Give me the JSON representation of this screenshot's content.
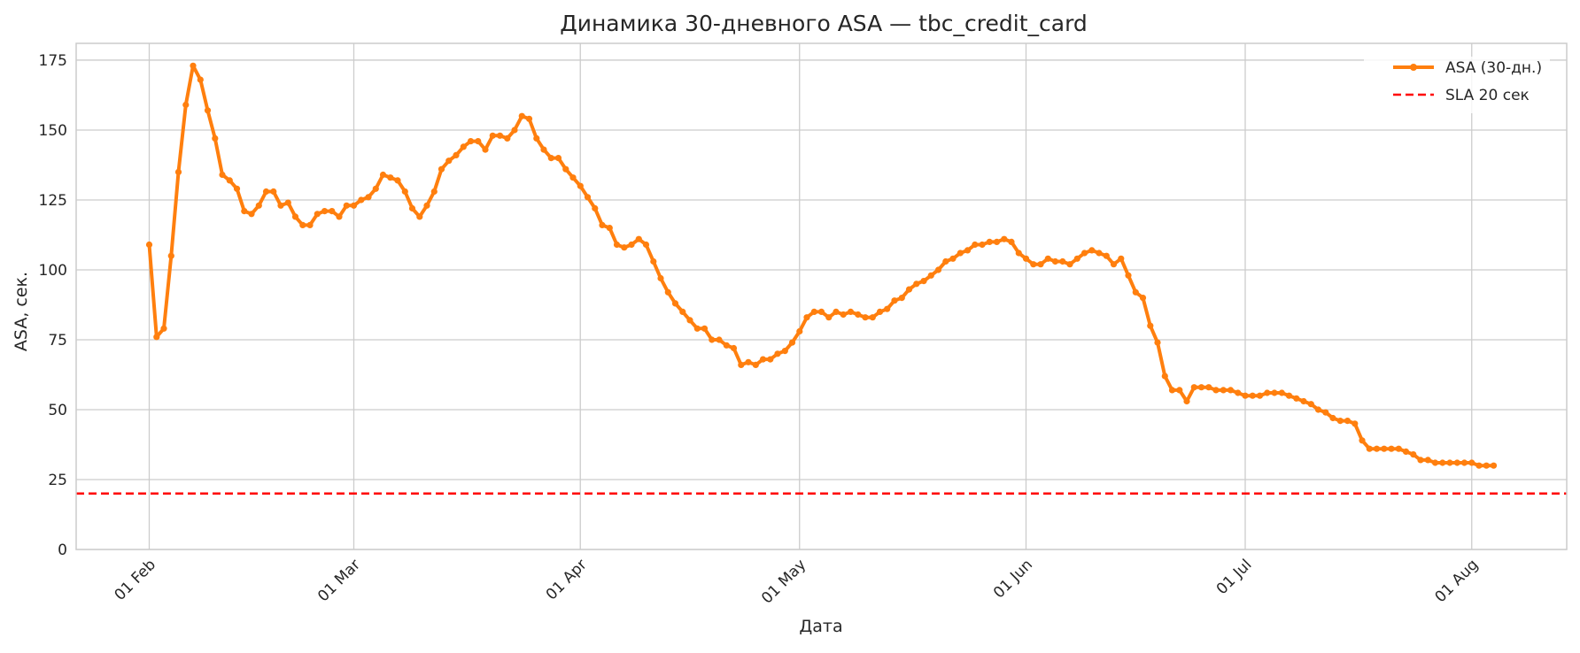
{
  "chart_data": {
    "type": "line",
    "title": "Динамика 30-дневного ASA — tbc_credit_card",
    "xlabel": "Дата",
    "ylabel": "ASA, сек.",
    "x_axis_type": "date",
    "xlim": [
      "2025-01-22",
      "2025-08-14"
    ],
    "ylim": [
      0,
      181
    ],
    "x_ticks": [
      {
        "date": "2025-02-01",
        "label": "01 Feb"
      },
      {
        "date": "2025-03-01",
        "label": "01 Mar"
      },
      {
        "date": "2025-04-01",
        "label": "01 Apr"
      },
      {
        "date": "2025-05-01",
        "label": "01 May"
      },
      {
        "date": "2025-06-01",
        "label": "01 Jun"
      },
      {
        "date": "2025-07-01",
        "label": "01 Jul"
      },
      {
        "date": "2025-08-01",
        "label": "01 Aug"
      }
    ],
    "y_ticks": [
      0,
      25,
      50,
      75,
      100,
      125,
      150,
      175
    ],
    "grid": true,
    "legend": {
      "placement": "top-right",
      "entries": [
        "ASA (30-дн.)",
        "SLA 20 сек"
      ]
    },
    "series": [
      {
        "name": "ASA (30-дн.)",
        "color": "#ff7f0e",
        "marker": "circle",
        "style": "solid",
        "start_date": "2025-02-01",
        "step_days": 1,
        "values": [
          109,
          76,
          79,
          105,
          135,
          159,
          173,
          168,
          157,
          147,
          134,
          132,
          129,
          121,
          120,
          123,
          128,
          128,
          123,
          124,
          119,
          116,
          116,
          120,
          121,
          121,
          119,
          123,
          123,
          125,
          126,
          129,
          134,
          133,
          132,
          128,
          122,
          119,
          123,
          128,
          136,
          139,
          141,
          144,
          146,
          146,
          143,
          148,
          148,
          147,
          150,
          155,
          154,
          147,
          143,
          140,
          140,
          136,
          133,
          130,
          126,
          122,
          116,
          115,
          109,
          108,
          109,
          111,
          109,
          103,
          97,
          92,
          88,
          85,
          82,
          79,
          79,
          75,
          75,
          73,
          72,
          66,
          67,
          66,
          68,
          68,
          70,
          71,
          74,
          78,
          83,
          85,
          85,
          83,
          85,
          84,
          85,
          84,
          83,
          83,
          85,
          86,
          89,
          90,
          93,
          95,
          96,
          98,
          100,
          103,
          104,
          106,
          107,
          109,
          109,
          110,
          110,
          111,
          110,
          106,
          104,
          102,
          102,
          104,
          103,
          103,
          102,
          104,
          106,
          107,
          106,
          105,
          102,
          104,
          98,
          92,
          90,
          80,
          74,
          62,
          57,
          57,
          53,
          58,
          58,
          58,
          57,
          57,
          57,
          56,
          55,
          55,
          55,
          56,
          56,
          56,
          55,
          54,
          53,
          52,
          50,
          49,
          47,
          46,
          46,
          45,
          39,
          36,
          36,
          36,
          36,
          36,
          35,
          34,
          32,
          32,
          31,
          31,
          31,
          31,
          31,
          31,
          30,
          30,
          30
        ]
      },
      {
        "name": "SLA 20 сек",
        "color": "#ff0000",
        "style": "dashed",
        "type": "hline",
        "y": 20
      }
    ]
  }
}
